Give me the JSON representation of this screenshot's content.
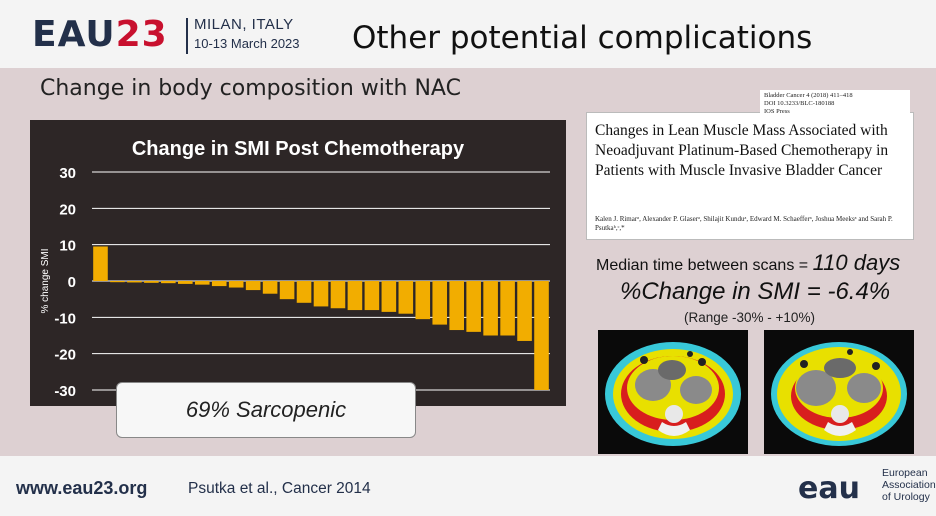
{
  "header": {
    "logo_text": "EAU",
    "logo_number": "23",
    "city": "MILAN, ITALY",
    "dates": "10-13 March 2023",
    "title": "Other potential complications"
  },
  "subtitle": "Change in body composition with NAC",
  "callout": "69% Sarcopenic",
  "paper": {
    "meta": [
      "Bladder Cancer 4 (2018) 411–418",
      "DOI 10.3233/BLC-180188",
      "IOS Press"
    ],
    "title": "Changes in Lean Muscle Mass Associated with Neoadjuvant Platinum-Based Chemotherapy in Patients with Muscle Invasive Bladder Cancer",
    "authors": "Kalen J. Rimarᵃ, Alexander P. Glaserᵃ, Shilajit Kunduᵃ, Edward M. Schaefferᵃ, Joshua Meeksᵃ and Sarah P. Psutkaᵇ,ᶜ,*"
  },
  "stats": {
    "median_label": "Median time between scans = ",
    "median_value": "110 days",
    "change": "%Change in SMI = -6.4%",
    "range": "(Range -30% - +10%)"
  },
  "footer": {
    "url": "www.eau23.org",
    "citation": "Psutka et al., Cancer 2014",
    "org_lines": [
      "European",
      "Association",
      "of Urology"
    ],
    "org_logo_text": "eau"
  },
  "colors": {
    "bar": "#f2ad00",
    "chart_bg": "#2d2626",
    "brand_navy": "#23304a",
    "brand_red": "#c8102e"
  },
  "chart_data": {
    "type": "bar",
    "title": "Change in SMI Post Chemotherapy",
    "ylabel": "% change SMI",
    "xlabel": "",
    "ylim": [
      -30,
      30
    ],
    "yticks": [
      30,
      20,
      10,
      0,
      -10,
      -20,
      -30
    ],
    "grid": true,
    "values": [
      9.5,
      -0.3,
      -0.4,
      -0.5,
      -0.6,
      -0.8,
      -1.0,
      -1.4,
      -1.8,
      -2.5,
      -3.5,
      -5.0,
      -6.0,
      -7.0,
      -7.5,
      -8.0,
      -8.0,
      -8.5,
      -9.0,
      -10.5,
      -12.0,
      -13.5,
      -14.0,
      -15.0,
      -15.0,
      -16.5,
      -30.0
    ]
  }
}
